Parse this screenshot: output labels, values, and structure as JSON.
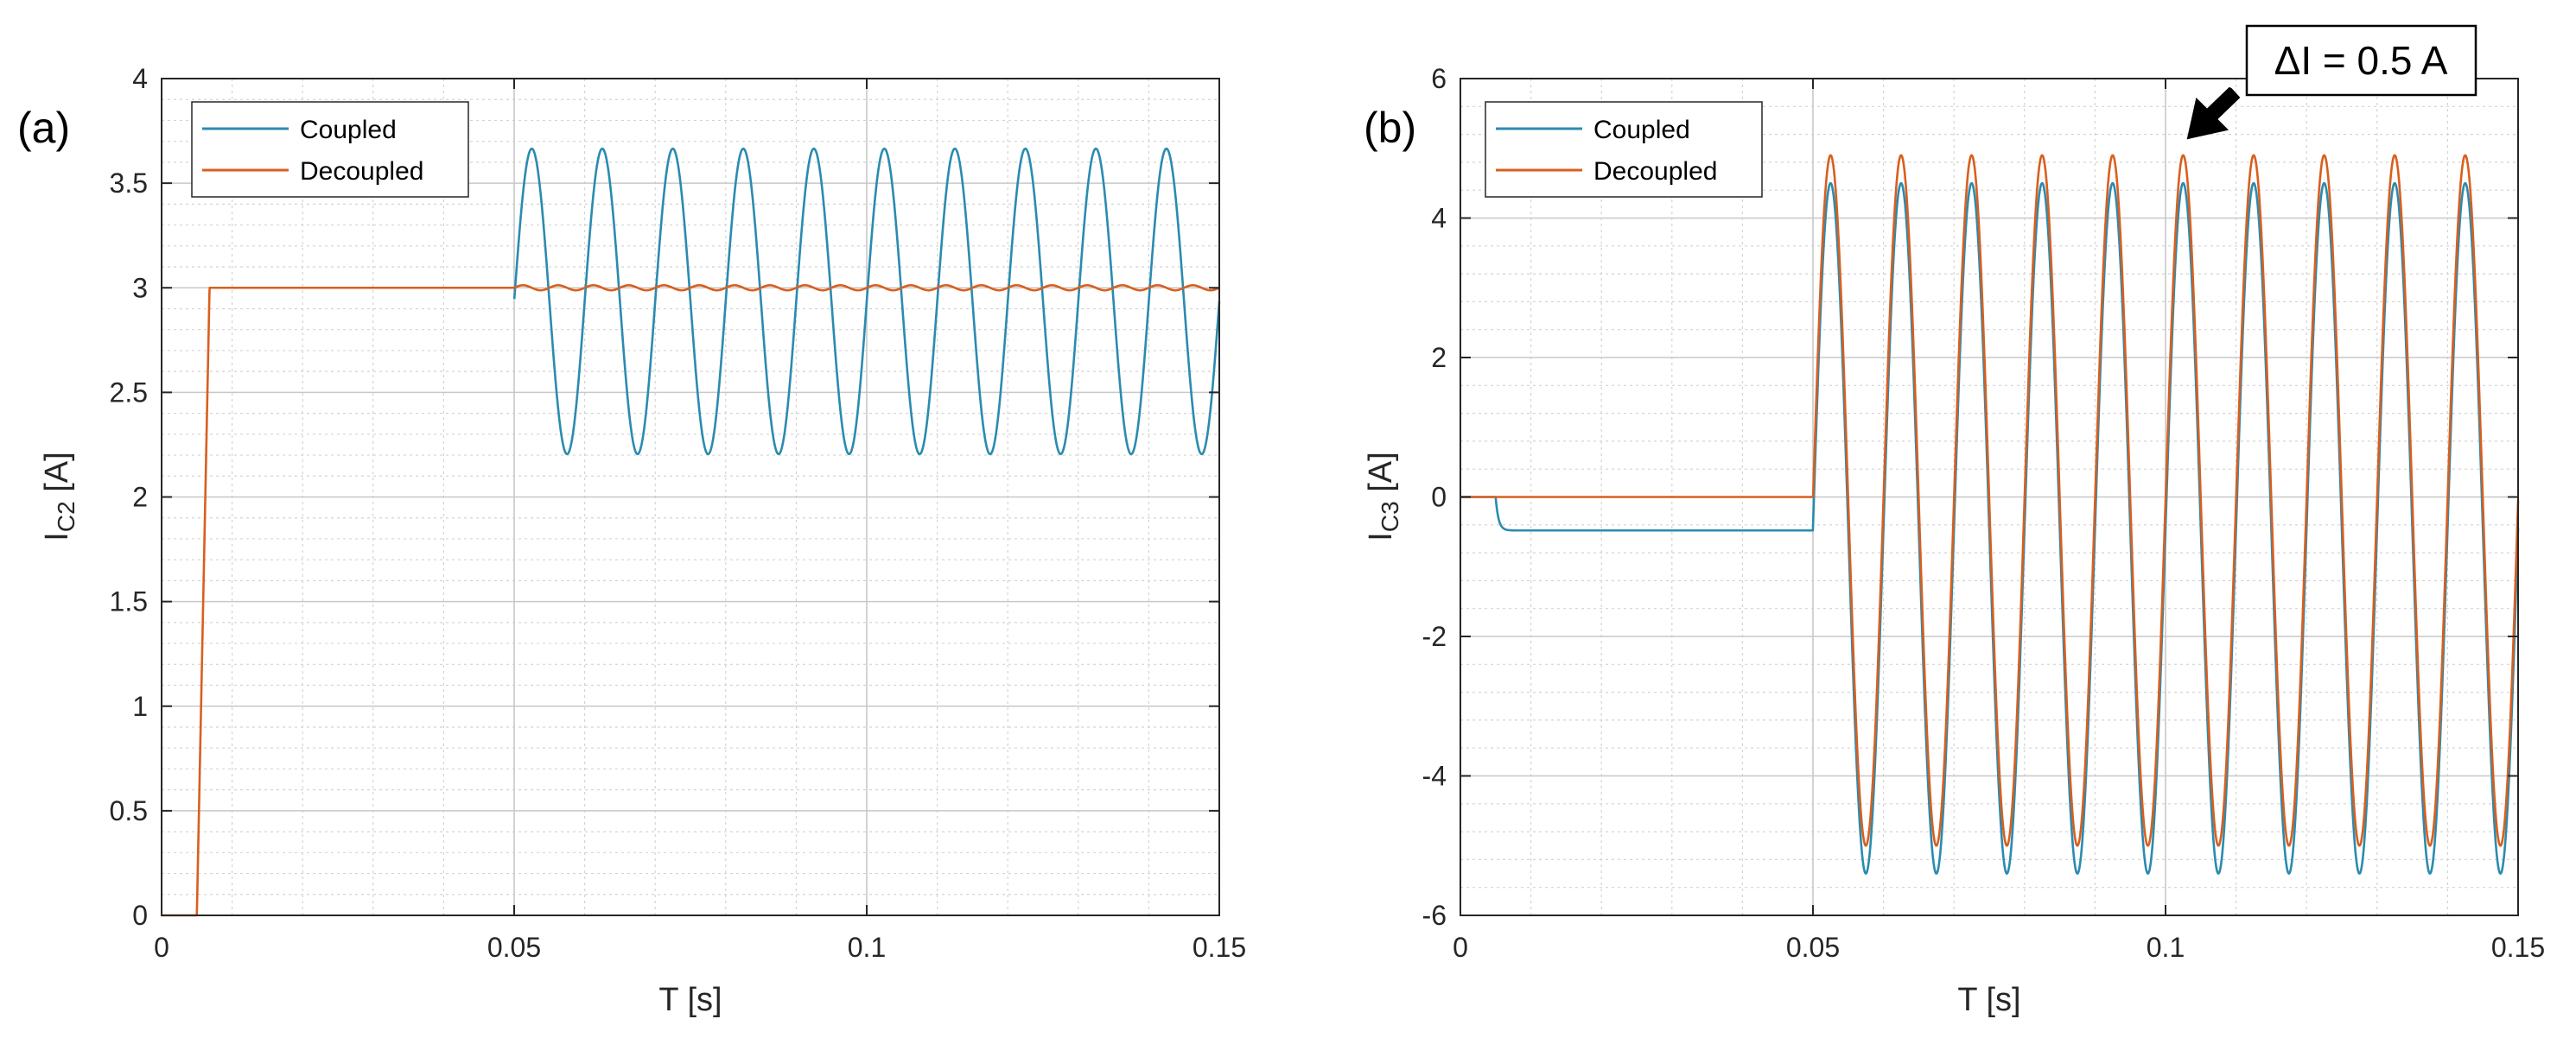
{
  "chart_data": [
    {
      "type": "line",
      "panel_label": "(a)",
      "xlabel": "T [s]",
      "ylabel": {
        "main": "I",
        "sub": "C2",
        "unit": " [A]"
      },
      "xlim": [
        0,
        0.15
      ],
      "ylim": [
        0,
        4
      ],
      "xticks": [
        0,
        0.05,
        0.1,
        0.15
      ],
      "xtick_labels": [
        "0",
        "0.05",
        "0.1",
        "0.15"
      ],
      "yticks": [
        0,
        0.5,
        1,
        1.5,
        2,
        2.5,
        3,
        3.5,
        4
      ],
      "ytick_labels": [
        "0",
        "0.5",
        "1",
        "1.5",
        "2",
        "2.5",
        "3",
        "3.5",
        "4"
      ],
      "grid": true,
      "legend_position": "top-left",
      "series": [
        {
          "name": "Coupled",
          "color": "#2a8bb0",
          "description": "starts at t=0.05 s; oscillates about 2.935 A with amplitude about 0.73 A at 100 Hz",
          "model": {
            "start": 0.05,
            "offset": 2.935,
            "amplitude": 0.73,
            "frequency": 100
          }
        },
        {
          "name": "Decoupled",
          "color": "#d95f1e",
          "description": "0 until ~0.005 s, rises to 3 A, stays at 3 A with small ripple after 0.05 s",
          "model": {
            "step_time": 0.005,
            "final": 3,
            "ripple": 0.012
          }
        }
      ]
    },
    {
      "type": "line",
      "panel_label": "(b)",
      "xlabel": "T [s]",
      "ylabel": {
        "main": "I",
        "sub": "C3",
        "unit": " [A]"
      },
      "xlim": [
        0,
        0.15
      ],
      "ylim": [
        -6,
        6
      ],
      "xticks": [
        0,
        0.05,
        0.1,
        0.15
      ],
      "xtick_labels": [
        "0",
        "0.05",
        "0.1",
        "0.15"
      ],
      "yticks": [
        -6,
        -4,
        -2,
        0,
        2,
        4,
        6
      ],
      "ytick_labels": [
        "-6",
        "-4",
        "-2",
        "0",
        "2",
        "4",
        "6"
      ],
      "grid": true,
      "legend_position": "top-left",
      "annotation": {
        "text": "ΔI = 0.5 A",
        "position": "top-right"
      },
      "series": [
        {
          "name": "Coupled",
          "color": "#2a8bb0",
          "description": "0 until 0.005 s, steps to -0.48 A, at 0.05 s sinusoid peaks +4.5 / -5.4 A at 100 Hz",
          "model": {
            "step_time": 0.005,
            "dc_level": -0.48,
            "start": 0.05,
            "offset": -0.45,
            "amplitude": 4.95,
            "frequency": 100
          }
        },
        {
          "name": "Decoupled",
          "color": "#d95f1e",
          "description": "0 until 0.05 s, then sinusoid peaks +4.9 / -5.0 A at 100 Hz",
          "model": {
            "start": 0.05,
            "offset": -0.05,
            "amplitude": 4.95,
            "frequency": 100
          }
        }
      ]
    }
  ]
}
